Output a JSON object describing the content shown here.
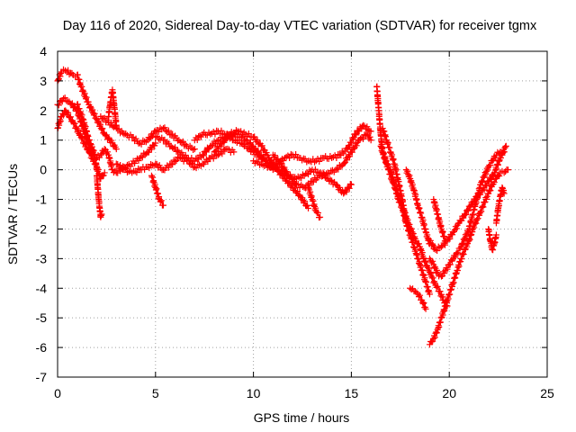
{
  "chart_data": {
    "type": "scatter",
    "title": "Day 116 of 2020, Sidereal Day-to-day VTEC variation (SDTVAR) for receiver tgmx",
    "xlabel": "GPS time / hours",
    "ylabel": "SDTVAR / TECUs",
    "xlim": [
      0,
      25
    ],
    "ylim": [
      -7,
      4
    ],
    "x_ticks": [
      0,
      5,
      10,
      15,
      20,
      25
    ],
    "y_ticks": [
      -7,
      -6,
      -5,
      -4,
      -3,
      -2,
      -1,
      0,
      1,
      2,
      3,
      4
    ],
    "x_tick_labels": [
      "0",
      "5",
      "10",
      "15",
      "20",
      "25"
    ],
    "y_tick_labels": [
      "-7",
      "-6",
      "-5",
      "-4",
      "-3",
      "-2",
      "-1",
      "0",
      "1",
      "2",
      "3",
      "4"
    ],
    "grid": true,
    "marker": "+",
    "colors": {
      "points": "#ff0000",
      "grid": "#a0a0a0",
      "axes": "#000000"
    },
    "series": [
      {
        "x": [
          0.0,
          0.2,
          0.4,
          0.8,
          1.0,
          1.2,
          1.6,
          2.0,
          2.4,
          2.8,
          3.0
        ],
        "y": [
          3.0,
          3.3,
          3.35,
          3.2,
          3.2,
          2.8,
          2.2,
          1.7,
          1.2,
          0.9,
          0.7
        ]
      },
      {
        "x": [
          0.0,
          0.3,
          0.6,
          1.0,
          1.4,
          1.8,
          2.0,
          2.2,
          2.4,
          2.6,
          2.8,
          3.0,
          3.4,
          3.8,
          4.2,
          4.6,
          5.0
        ],
        "y": [
          2.2,
          2.4,
          2.3,
          2.0,
          1.2,
          0.5,
          0.4,
          0.5,
          0.7,
          0.5,
          0.0,
          -0.1,
          0.1,
          0.2,
          0.4,
          0.6,
          0.9
        ]
      },
      {
        "x": [
          0.0,
          0.2,
          0.4,
          0.8,
          1.2,
          1.6,
          2.0,
          2.2,
          2.4
        ],
        "y": [
          1.4,
          1.8,
          2.0,
          1.6,
          1.1,
          0.6,
          0.1,
          -0.3,
          -0.1
        ]
      },
      {
        "x": [
          2.0,
          2.05,
          2.1,
          2.15,
          2.2,
          2.25
        ],
        "y": [
          -0.2,
          -0.6,
          -1.0,
          -1.3,
          -1.6,
          -1.5
        ]
      },
      {
        "x": [
          1.0,
          1.3,
          1.6,
          1.9,
          2.0
        ],
        "y": [
          2.2,
          1.7,
          1.0,
          0.5,
          0.0
        ]
      },
      {
        "x": [
          3.0,
          3.4,
          3.8,
          4.2,
          4.6,
          5.0,
          5.4,
          5.8,
          6.2,
          6.6,
          7.0,
          7.4,
          7.8,
          8.2,
          8.6,
          9.0
        ],
        "y": [
          0.2,
          0.0,
          -0.1,
          0.0,
          0.1,
          0.2,
          0.0,
          0.2,
          0.4,
          0.3,
          0.1,
          0.2,
          0.4,
          0.5,
          0.7,
          0.6
        ]
      },
      {
        "x": [
          2.2,
          2.6,
          3.0,
          3.4,
          3.8,
          4.2,
          4.6,
          5.0,
          5.4,
          5.8,
          6.2,
          6.6,
          7.0
        ],
        "y": [
          1.8,
          1.6,
          1.4,
          1.2,
          1.1,
          0.9,
          1.0,
          1.3,
          1.4,
          1.2,
          1.0,
          0.8,
          0.7
        ]
      },
      {
        "x": [
          2.6,
          2.7,
          2.8,
          2.9,
          3.0
        ],
        "y": [
          1.8,
          2.3,
          2.7,
          2.1,
          1.5
        ]
      },
      {
        "x": [
          4.8,
          5.0,
          5.2,
          5.4
        ],
        "y": [
          -0.2,
          -0.6,
          -1.0,
          -1.2
        ]
      },
      {
        "x": [
          5.0,
          5.4,
          5.8,
          6.2,
          6.6,
          7.0,
          7.4,
          7.8,
          8.2,
          8.6,
          9.0,
          9.4,
          9.8,
          10.2,
          10.6,
          11.0
        ],
        "y": [
          1.1,
          1.0,
          0.8,
          0.6,
          0.4,
          0.3,
          0.5,
          0.8,
          1.0,
          1.1,
          1.2,
          1.1,
          0.9,
          0.6,
          0.3,
          0.0
        ]
      },
      {
        "x": [
          7.0,
          7.4,
          7.8,
          8.2,
          8.6,
          9.0,
          9.4,
          9.8,
          10.2,
          10.6,
          11.0,
          11.4,
          11.8,
          12.2,
          12.6,
          13.0,
          13.4,
          13.8,
          14.2,
          14.6,
          15.0
        ],
        "y": [
          1.0,
          1.2,
          1.2,
          1.3,
          1.2,
          1.0,
          0.9,
          0.7,
          0.5,
          0.3,
          0.1,
          0.0,
          -0.2,
          -0.3,
          -0.2,
          0.0,
          -0.1,
          -0.3,
          -0.5,
          -0.8,
          -0.5
        ]
      },
      {
        "x": [
          8.0,
          8.4,
          8.8,
          9.2,
          9.6,
          10.0,
          10.4,
          10.8,
          11.2,
          11.6,
          12.0,
          12.4,
          12.8
        ],
        "y": [
          0.6,
          0.9,
          1.2,
          1.3,
          1.2,
          1.1,
          0.8,
          0.4,
          0.0,
          -0.3,
          -0.6,
          -0.9,
          -1.3
        ]
      },
      {
        "x": [
          10.0,
          10.4,
          10.8,
          11.2,
          11.6,
          12.0,
          12.4,
          12.8,
          13.2,
          13.6,
          14.0,
          14.4,
          14.8,
          15.2,
          15.6,
          16.0
        ],
        "y": [
          0.3,
          0.2,
          0.1,
          0.2,
          0.4,
          0.5,
          0.4,
          0.3,
          0.3,
          0.4,
          0.4,
          0.5,
          0.7,
          1.2,
          1.5,
          1.3
        ]
      },
      {
        "x": [
          11.0,
          11.4,
          11.8,
          12.2,
          12.6,
          13.0,
          13.4,
          13.8,
          14.2,
          14.6,
          15.0,
          15.4,
          15.8,
          16.0
        ],
        "y": [
          0.5,
          0.2,
          -0.2,
          -0.5,
          -0.6,
          -0.4,
          -0.2,
          -0.1,
          0.0,
          0.2,
          0.6,
          1.0,
          1.2,
          1.0
        ]
      },
      {
        "x": [
          12.8,
          13.0,
          13.2,
          13.4
        ],
        "y": [
          -0.6,
          -1.0,
          -1.4,
          -1.6
        ]
      },
      {
        "x": [
          16.3,
          16.4,
          16.5,
          16.6,
          16.8,
          17.0,
          17.2,
          17.4,
          17.6,
          17.8,
          18.0,
          18.2,
          18.4,
          18.6,
          18.8,
          19.0
        ],
        "y": [
          2.8,
          2.0,
          1.2,
          0.6,
          0.2,
          0.0,
          -0.5,
          -1.0,
          -1.3,
          -1.8,
          -2.2,
          -2.6,
          -3.0,
          -3.4,
          -3.8,
          -4.2
        ]
      },
      {
        "x": [
          16.5,
          16.7,
          16.9,
          17.1,
          17.3,
          17.5,
          17.7,
          17.9,
          18.1,
          18.3,
          18.5,
          18.7,
          18.9,
          19.1,
          19.3,
          19.5,
          19.7,
          19.9
        ],
        "y": [
          0.8,
          0.4,
          0.0,
          -0.4,
          -0.7,
          -1.1,
          -1.4,
          -1.8,
          -2.1,
          -2.4,
          -2.6,
          -3.0,
          -3.3,
          -3.6,
          -3.9,
          -4.1,
          -4.4,
          -4.6
        ]
      },
      {
        "x": [
          16.6,
          16.8,
          17.0,
          17.2,
          17.4,
          17.6,
          17.8
        ],
        "y": [
          1.4,
          1.0,
          0.6,
          0.2,
          -0.4,
          -1.0,
          -1.8
        ]
      },
      {
        "x": [
          17.8,
          18.0,
          18.2,
          18.4,
          18.6,
          18.8,
          19.0
        ],
        "y": [
          0.0,
          -0.3,
          -0.7,
          -1.2,
          -1.6,
          -2.1,
          -2.5
        ]
      },
      {
        "x": [
          18.0,
          18.2,
          18.4,
          18.6,
          18.8
        ],
        "y": [
          -4.0,
          -4.1,
          -4.2,
          -4.4,
          -4.7
        ]
      },
      {
        "x": [
          19.0,
          19.2,
          19.4,
          19.6,
          19.8,
          20.0,
          20.2,
          20.4,
          20.6,
          20.8,
          21.0,
          21.2,
          21.4,
          21.6,
          21.8,
          22.0,
          22.2,
          22.4,
          22.6,
          22.8,
          23.0
        ],
        "y": [
          -5.9,
          -5.7,
          -5.4,
          -5.0,
          -4.6,
          -4.2,
          -3.8,
          -3.4,
          -3.0,
          -2.7,
          -2.4,
          -2.0,
          -1.7,
          -1.4,
          -1.1,
          -0.8,
          -0.5,
          -0.3,
          -0.1,
          -0.1,
          0.0
        ]
      },
      {
        "x": [
          19.0,
          19.3,
          19.6,
          19.9,
          20.2,
          20.5,
          20.8,
          21.1,
          21.4,
          21.7,
          22.0,
          22.3,
          22.6,
          22.9
        ],
        "y": [
          -2.4,
          -2.7,
          -2.6,
          -2.4,
          -2.1,
          -1.8,
          -1.5,
          -1.2,
          -0.9,
          -0.7,
          -0.4,
          -0.1,
          0.4,
          0.8
        ]
      },
      {
        "x": [
          19.0,
          19.2,
          19.4,
          19.6,
          19.8,
          20.0,
          20.2,
          20.4,
          20.6,
          20.8,
          21.0,
          21.2,
          21.4,
          21.6,
          21.8,
          22.0,
          22.2,
          22.4,
          22.6,
          22.8
        ],
        "y": [
          -3.0,
          -3.2,
          -3.5,
          -3.6,
          -3.4,
          -3.2,
          -3.0,
          -2.8,
          -2.6,
          -2.3,
          -2.0,
          -1.5,
          -1.0,
          -0.5,
          -0.2,
          0.1,
          0.3,
          0.5,
          0.6,
          0.6
        ]
      },
      {
        "x": [
          19.2,
          19.4,
          19.6,
          19.8
        ],
        "y": [
          -1.0,
          -1.5,
          -2.0,
          -2.4
        ]
      },
      {
        "x": [
          22.0,
          22.1,
          22.2,
          22.3,
          22.4
        ],
        "y": [
          -2.0,
          -2.4,
          -2.7,
          -2.5,
          -2.2
        ]
      },
      {
        "x": [
          22.4,
          22.5,
          22.6,
          22.7,
          22.8
        ],
        "y": [
          -1.8,
          -1.3,
          -0.9,
          -0.6,
          -0.8
        ]
      }
    ]
  }
}
